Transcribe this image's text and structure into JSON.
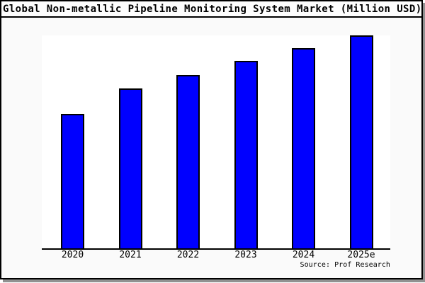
{
  "window": {
    "title": "Global Non-metallic Pipeline Monitoring System Market (Million USD)"
  },
  "source": "Source: Prof Research",
  "colors": {
    "bar_fill": "#0000ff",
    "bar_border": "#000000",
    "plot_background": "#ffffff",
    "figure_background": "#fafafa",
    "window_border": "#000000",
    "drop_shadow": "#919191"
  },
  "chart_data": {
    "type": "bar",
    "title": "Global Non-metallic Pipeline Monitoring System Market (Million USD)",
    "categories": [
      "2020",
      "2021",
      "2022",
      "2023",
      "2024",
      "2025e"
    ],
    "values": [
      63,
      75,
      81.5,
      88,
      94,
      100
    ],
    "value_units": "relative height, % of tallest bar (no y-axis scale shown)",
    "xlabel": "",
    "ylabel": "",
    "ylim": [
      0,
      100
    ],
    "grid": false,
    "legend": false,
    "y_axis_shown": false,
    "source_annotation": "Source: Prof Research",
    "bar_color": "#0000ff",
    "bar_border_color": "#000000"
  }
}
